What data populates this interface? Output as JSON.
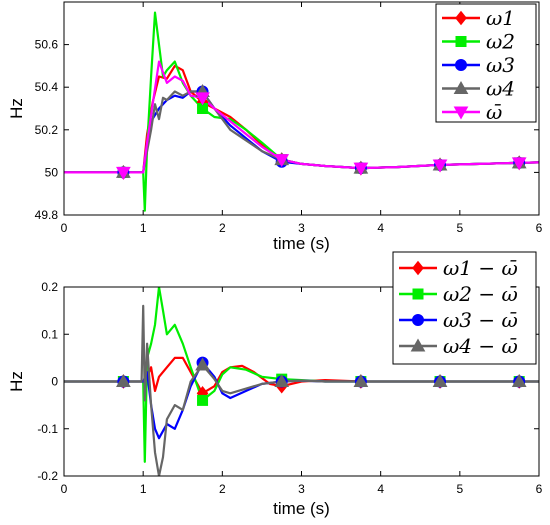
{
  "chart_data": [
    {
      "type": "line",
      "xlabel": "time (s)",
      "ylabel": "Hz",
      "xlim": [
        0,
        6
      ],
      "ylim": [
        49.8,
        50.8
      ],
      "xticks": [
        "0",
        "1",
        "2",
        "3",
        "4",
        "5",
        "6"
      ],
      "yticks": [
        "49.8",
        "50",
        "50.2",
        "50.4",
        "50.6"
      ],
      "legend_position": "top-right",
      "series": [
        {
          "name": "ω1",
          "color": "#ff0000",
          "marker": "diamond",
          "x": [
            0,
            0.75,
            1.0,
            1.05,
            1.12,
            1.2,
            1.3,
            1.4,
            1.5,
            1.6,
            1.75,
            1.9,
            2.1,
            2.3,
            2.5,
            2.75,
            3.0,
            3.3,
            3.75,
            4.2,
            4.75,
            5.25,
            5.75,
            6.0
          ],
          "y": [
            50.0,
            50.0,
            50.0,
            50.18,
            50.33,
            50.45,
            50.44,
            50.5,
            50.48,
            50.38,
            50.33,
            50.3,
            50.26,
            50.2,
            50.13,
            50.06,
            50.04,
            50.03,
            50.02,
            50.025,
            50.035,
            50.04,
            50.045,
            50.047
          ]
        },
        {
          "name": "ω2",
          "color": "#00ee00",
          "marker": "square",
          "x": [
            0,
            0.75,
            1.0,
            1.02,
            1.05,
            1.1,
            1.15,
            1.2,
            1.25,
            1.3,
            1.4,
            1.5,
            1.6,
            1.75,
            1.9,
            2.1,
            2.3,
            2.5,
            2.75,
            3.0,
            3.3,
            3.75,
            4.2,
            4.75,
            5.25,
            5.75,
            6.0
          ],
          "y": [
            50.0,
            50.0,
            50.0,
            49.82,
            50.12,
            50.45,
            50.75,
            50.6,
            50.45,
            50.48,
            50.52,
            50.42,
            50.36,
            50.3,
            50.26,
            50.25,
            50.2,
            50.14,
            50.06,
            50.04,
            50.03,
            50.02,
            50.025,
            50.035,
            50.04,
            50.045,
            50.047
          ]
        },
        {
          "name": "ω3",
          "color": "#0000ff",
          "marker": "circle",
          "x": [
            0,
            0.75,
            1.0,
            1.05,
            1.1,
            1.2,
            1.3,
            1.4,
            1.5,
            1.6,
            1.75,
            1.9,
            2.1,
            2.3,
            2.5,
            2.75,
            3.0,
            3.3,
            3.75,
            4.2,
            4.75,
            5.25,
            5.75,
            6.0
          ],
          "y": [
            50.0,
            50.0,
            50.0,
            50.14,
            50.24,
            50.3,
            50.34,
            50.36,
            50.35,
            50.38,
            50.38,
            50.3,
            50.22,
            50.16,
            50.1,
            50.05,
            50.04,
            50.03,
            50.02,
            50.025,
            50.035,
            50.04,
            50.045,
            50.047
          ]
        },
        {
          "name": "ω4",
          "color": "#666666",
          "marker": "triangle",
          "x": [
            0,
            0.75,
            1.0,
            1.05,
            1.1,
            1.15,
            1.2,
            1.25,
            1.3,
            1.4,
            1.5,
            1.6,
            1.75,
            1.9,
            2.1,
            2.3,
            2.5,
            2.75,
            3.0,
            3.3,
            3.75,
            4.2,
            4.75,
            5.25,
            5.75,
            6.0
          ],
          "y": [
            50.0,
            50.0,
            50.0,
            50.1,
            50.2,
            50.32,
            50.25,
            50.35,
            50.34,
            50.38,
            50.36,
            50.38,
            50.38,
            50.3,
            50.2,
            50.15,
            50.1,
            50.06,
            50.04,
            50.03,
            50.02,
            50.025,
            50.035,
            50.04,
            50.045,
            50.047
          ]
        },
        {
          "name": "ω̄",
          "color": "#ff00ff",
          "marker": "triangle-down",
          "x": [
            0,
            0.75,
            1.0,
            1.05,
            1.12,
            1.2,
            1.3,
            1.4,
            1.5,
            1.6,
            1.75,
            1.9,
            2.1,
            2.3,
            2.5,
            2.75,
            3.0,
            3.3,
            3.75,
            4.2,
            4.75,
            5.25,
            5.75,
            6.0
          ],
          "y": [
            50.0,
            50.0,
            50.0,
            50.14,
            50.32,
            50.52,
            50.42,
            50.45,
            50.43,
            50.36,
            50.35,
            50.3,
            50.24,
            50.18,
            50.12,
            50.06,
            50.04,
            50.03,
            50.02,
            50.025,
            50.035,
            50.04,
            50.045,
            50.047
          ]
        }
      ]
    },
    {
      "type": "line",
      "xlabel": "time (s)",
      "ylabel": "Hz",
      "xlim": [
        0,
        6
      ],
      "ylim": [
        -0.2,
        0.2
      ],
      "xticks": [
        "0",
        "1",
        "2",
        "3",
        "4",
        "5",
        "6"
      ],
      "yticks": [
        "-0.2",
        "-0.1",
        "0",
        "0.1",
        "0.2"
      ],
      "legend_position": "top-right",
      "series": [
        {
          "name": "ω1 − ω̄",
          "color": "#ff0000",
          "marker": "diamond",
          "x": [
            0,
            0.75,
            1.0,
            1.05,
            1.1,
            1.15,
            1.2,
            1.3,
            1.4,
            1.5,
            1.6,
            1.75,
            1.9,
            2.0,
            2.1,
            2.25,
            2.4,
            2.6,
            2.75,
            3.0,
            3.3,
            3.75,
            4.75,
            5.75,
            6.0
          ],
          "y": [
            0,
            0,
            0,
            0.01,
            0.03,
            -0.02,
            0.01,
            0.03,
            0.05,
            0.05,
            0.02,
            -0.025,
            -0.01,
            0.02,
            0.03,
            0.033,
            0.02,
            -0.005,
            -0.01,
            0.0,
            0.003,
            0,
            0,
            0,
            0
          ]
        },
        {
          "name": "ω2 − ω̄",
          "color": "#00ee00",
          "marker": "square",
          "x": [
            0,
            0.75,
            1.0,
            1.02,
            1.05,
            1.1,
            1.15,
            1.2,
            1.25,
            1.3,
            1.4,
            1.5,
            1.6,
            1.75,
            1.9,
            2.0,
            2.1,
            2.3,
            2.5,
            2.75,
            3.0,
            3.3,
            3.75,
            4.75,
            5.75,
            6.0
          ],
          "y": [
            0,
            0,
            0,
            -0.17,
            0.05,
            0.08,
            0.12,
            0.2,
            0.15,
            0.1,
            0.12,
            0.08,
            0.03,
            -0.04,
            -0.02,
            0.015,
            0.03,
            0.025,
            0.01,
            0.005,
            0.003,
            0.0,
            0,
            0,
            0,
            0
          ]
        },
        {
          "name": "ω3 − ω̄",
          "color": "#0000ff",
          "marker": "circle",
          "x": [
            0,
            0.75,
            1.0,
            1.05,
            1.1,
            1.15,
            1.2,
            1.3,
            1.4,
            1.5,
            1.6,
            1.75,
            1.9,
            2.0,
            2.1,
            2.3,
            2.5,
            2.75,
            3.0,
            3.3,
            3.75,
            4.75,
            5.75,
            6.0
          ],
          "y": [
            0,
            0,
            0,
            0.02,
            -0.05,
            -0.1,
            -0.12,
            -0.09,
            -0.1,
            -0.06,
            -0.01,
            0.04,
            0.01,
            -0.025,
            -0.035,
            -0.02,
            -0.005,
            0.0,
            0.002,
            0.0,
            0,
            0,
            0,
            0
          ]
        },
        {
          "name": "ω4 − ω̄",
          "color": "#666666",
          "marker": "triangle",
          "x": [
            0,
            0.75,
            0.98,
            1.0,
            1.02,
            1.05,
            1.1,
            1.15,
            1.2,
            1.25,
            1.3,
            1.4,
            1.5,
            1.6,
            1.75,
            1.9,
            2.0,
            2.1,
            2.3,
            2.5,
            2.75,
            3.0,
            3.3,
            3.75,
            4.75,
            5.75,
            6.0
          ],
          "y": [
            0,
            0,
            0,
            0.16,
            -0.04,
            0.08,
            -0.05,
            -0.15,
            -0.2,
            -0.16,
            -0.08,
            -0.05,
            -0.06,
            0.0,
            0.035,
            0.005,
            -0.02,
            -0.025,
            -0.015,
            -0.005,
            0.0,
            0.002,
            0.0,
            0,
            0,
            0,
            0
          ]
        }
      ]
    }
  ]
}
